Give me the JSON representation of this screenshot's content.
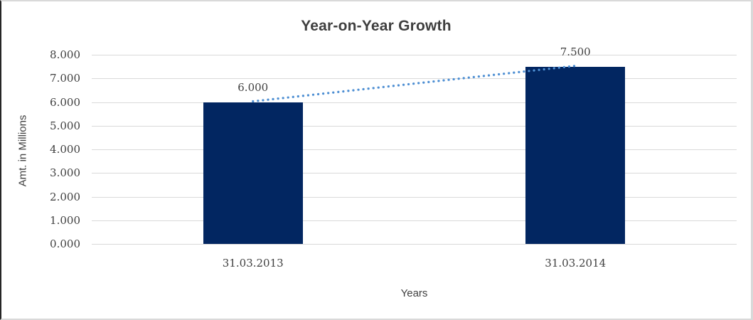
{
  "chart_data": {
    "type": "bar",
    "title": "Year-on-Year Growth",
    "xlabel": "Years",
    "ylabel": "Amt. in Millions",
    "categories": [
      "31.03.2013",
      "31.03.2014"
    ],
    "values": [
      6.0,
      7.5
    ],
    "data_labels": [
      "6.000",
      "7.500"
    ],
    "ylim": [
      0,
      8
    ],
    "ytick_values": [
      0,
      1,
      2,
      3,
      4,
      5,
      6,
      7,
      8
    ],
    "ytick_labels": [
      "0.000",
      "1.000",
      "2.000",
      "3.000",
      "4.000",
      "5.000",
      "6.000",
      "7.000",
      "8.000"
    ],
    "grid": true,
    "legend_position": "none",
    "trendline": {
      "style": "dotted",
      "from_value": 6.0,
      "to_value": 7.5
    }
  },
  "colors": {
    "bar": "#022661",
    "gridline": "#d9d9d9",
    "text": "#3f3f3f",
    "trendline": "#4e8fd3",
    "frame_border": "#d9d9d9",
    "frame_border_left": "#262626"
  }
}
